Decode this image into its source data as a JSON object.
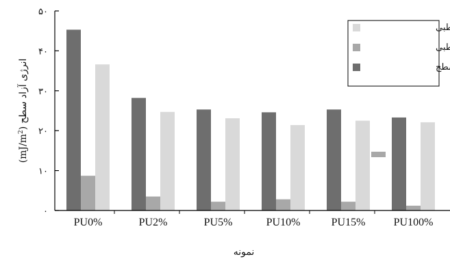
{
  "chart_data": {
    "type": "bar",
    "categories": [
      "PU0%",
      "PU2%",
      "PU5%",
      "PU10%",
      "PU15%",
      "PU100%"
    ],
    "series": [
      {
        "name": "انرژی آزاد سطح",
        "values": [
          45.3,
          28.2,
          25.3,
          24.6,
          25.3,
          23.3
        ],
        "color": "#6e6e6e"
      },
      {
        "name": "جزء قطبی",
        "values": [
          8.7,
          3.5,
          2.2,
          2.8,
          2.2,
          1.2
        ],
        "color": "#a8a8a8"
      },
      {
        "name": "جزء غیرقطبی",
        "values": [
          36.6,
          24.7,
          23.1,
          21.4,
          22.5,
          22.1
        ],
        "color": "#d9d9d9"
      }
    ],
    "legend_order": [
      2,
      1,
      0
    ],
    "legend_position": "top-right",
    "ylim": [
      0,
      50
    ],
    "yticks": [
      0,
      10,
      20,
      30,
      40,
      50
    ],
    "ytick_labels": [
      "۰",
      "۱۰",
      "۲۰",
      "۳۰",
      "۴۰",
      "۵۰"
    ],
    "xlabel": "نمونه",
    "ylabel_text": "انرژی آزاد سطح",
    "ylabel_unit": "(mJ/m",
    "ylabel_unit_sup": "2",
    "ylabel_unit_close": ")",
    "grid": false
  }
}
